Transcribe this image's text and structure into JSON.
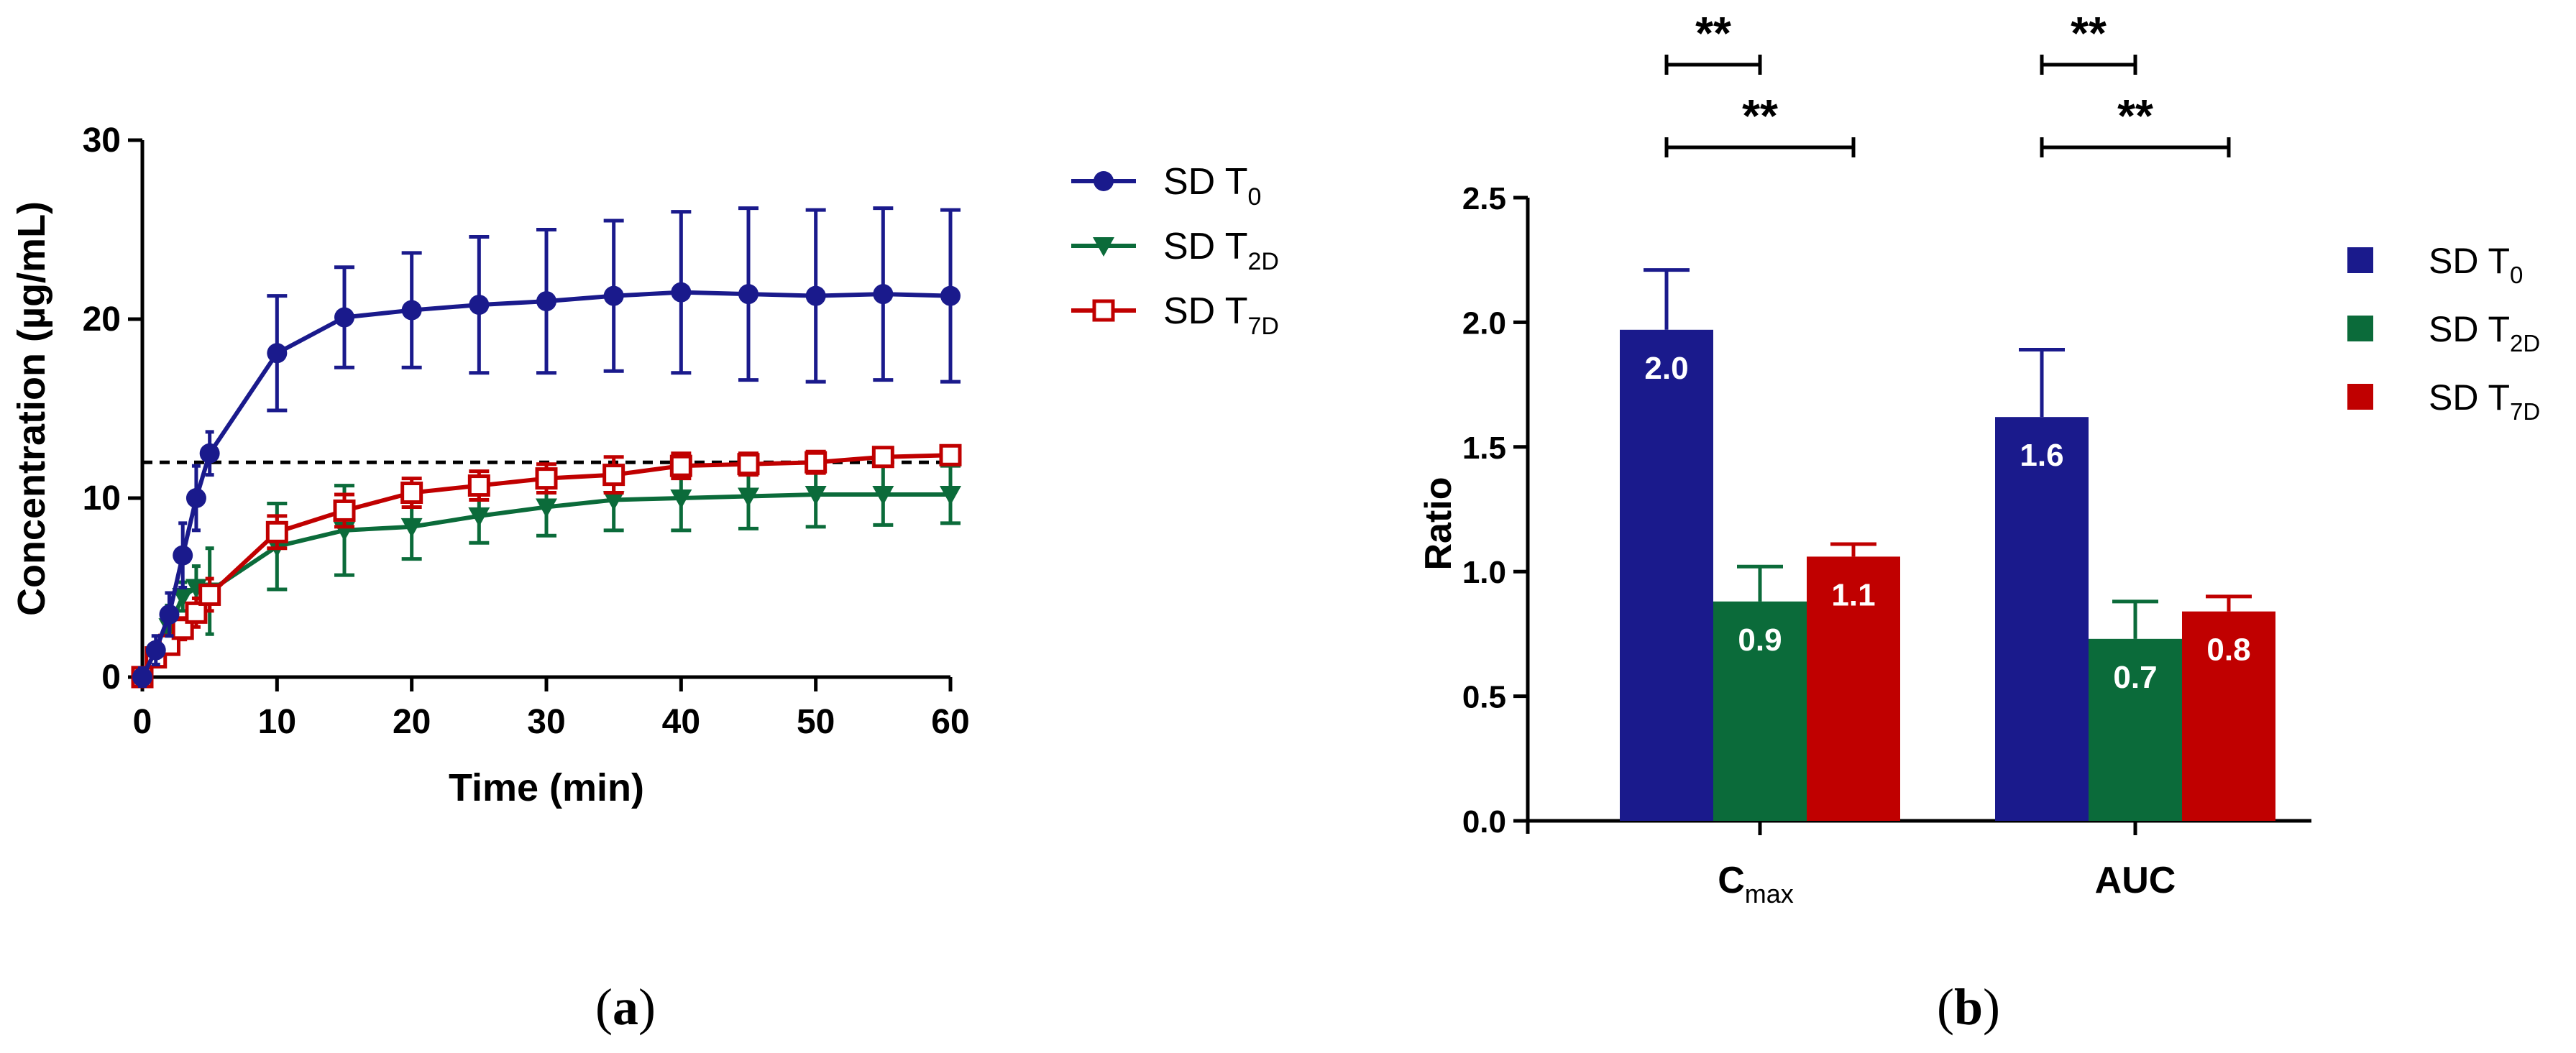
{
  "colors": {
    "t0": "#1a1a8c",
    "t2d": "#0b6b3a",
    "t7d": "#c00000",
    "axis": "#000000"
  },
  "chart_data": [
    {
      "id": "a",
      "type": "line",
      "panel_label": "a",
      "xlabel": "Time (min)",
      "ylabel": "Concentration (µg/mL)",
      "xlim": [
        0,
        60
      ],
      "ylim": [
        0,
        30
      ],
      "xticks": [
        "0",
        "10",
        "20",
        "30",
        "40",
        "50",
        "60"
      ],
      "yticks": [
        "0",
        "10",
        "20",
        "30"
      ],
      "reference_line": 12,
      "legend_position": "right",
      "x": [
        0,
        1,
        2,
        3,
        4,
        5,
        10,
        15,
        20,
        25,
        30,
        35,
        40,
        45,
        50,
        55,
        60
      ],
      "series": [
        {
          "name": "SD T0",
          "base": "SD T",
          "sub": "0",
          "marker": "circle",
          "color_key": "t0",
          "values": [
            0,
            1.5,
            3.5,
            6.8,
            10,
            12.5,
            18.1,
            20.1,
            20.5,
            20.8,
            21.0,
            21.3,
            21.5,
            21.4,
            21.3,
            21.4,
            21.3
          ],
          "errors": [
            0.5,
            0.8,
            1.2,
            1.8,
            1.8,
            1.2,
            3.2,
            2.8,
            3.2,
            3.8,
            4.0,
            4.2,
            4.5,
            4.8,
            4.8,
            4.8,
            4.8
          ]
        },
        {
          "name": "SD T2D",
          "base": "SD T",
          "sub": "2D",
          "marker": "triangle-down",
          "color_key": "t2d",
          "values": [
            0,
            1.2,
            2.8,
            4.5,
            5.0,
            4.8,
            7.3,
            8.2,
            8.4,
            9.0,
            9.5,
            9.9,
            10.0,
            10.1,
            10.2,
            10.2,
            10.2
          ],
          "errors": [
            0.3,
            0.6,
            1.2,
            0.8,
            1.2,
            2.4,
            2.4,
            2.5,
            1.8,
            1.5,
            1.6,
            1.7,
            1.8,
            1.8,
            1.8,
            1.7,
            1.6
          ]
        },
        {
          "name": "SD T7D",
          "base": "SD T",
          "sub": "7D",
          "marker": "square-open",
          "color_key": "t7d",
          "values": [
            0,
            1.1,
            1.8,
            2.7,
            3.6,
            4.6,
            8.1,
            9.3,
            10.3,
            10.7,
            11.1,
            11.3,
            11.8,
            11.9,
            12.0,
            12.3,
            12.4
          ],
          "errors": [
            0.2,
            0.4,
            0.5,
            0.6,
            0.8,
            0.9,
            0.9,
            0.9,
            0.8,
            0.8,
            0.8,
            1.0,
            0.7,
            0.6,
            0.6,
            0.5,
            0.4
          ]
        }
      ]
    },
    {
      "id": "b",
      "type": "bar",
      "panel_label": "b",
      "ylabel": "Ratio",
      "ylim": [
        0,
        2.5
      ],
      "yticks": [
        "0.0",
        "0.5",
        "1.0",
        "1.5",
        "2.0",
        "2.5"
      ],
      "categories": [
        {
          "base": "C",
          "sub": "max"
        },
        {
          "base": "AUC",
          "sub": ""
        }
      ],
      "legend_position": "right",
      "series": [
        {
          "name": "SD T0",
          "base": "SD T",
          "sub": "0",
          "color_key": "t0",
          "values": [
            1.97,
            1.62
          ],
          "errors": [
            0.24,
            0.27
          ],
          "labels": [
            "2.0",
            "1.6"
          ]
        },
        {
          "name": "SD T2D",
          "base": "SD T",
          "sub": "2D",
          "color_key": "t2d",
          "values": [
            0.88,
            0.73
          ],
          "errors": [
            0.14,
            0.15
          ],
          "labels": [
            "0.9",
            "0.7"
          ]
        },
        {
          "name": "SD T7D",
          "base": "SD T",
          "sub": "7D",
          "color_key": "t7d",
          "values": [
            1.06,
            0.84
          ],
          "errors": [
            0.05,
            0.06
          ],
          "labels": [
            "1.1",
            "0.8"
          ]
        }
      ],
      "significance": [
        {
          "category": 0,
          "from": 0,
          "to": 1,
          "label": "**"
        },
        {
          "category": 0,
          "from": 0,
          "to": 2,
          "label": "**"
        },
        {
          "category": 1,
          "from": 0,
          "to": 1,
          "label": "**"
        },
        {
          "category": 1,
          "from": 0,
          "to": 2,
          "label": "**"
        }
      ]
    }
  ]
}
